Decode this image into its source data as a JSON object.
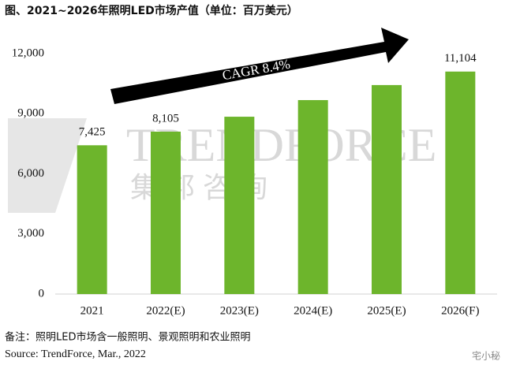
{
  "chart_data": {
    "type": "bar",
    "title": "图、2021~2026年照明LED市场产值（单位：百万美元）",
    "annotation": "CAGR 8.4%",
    "watermark": [
      "TRENDFORCE",
      "集邦咨询"
    ],
    "footnotes": [
      "备注：照明LED市场含一般照明、景观照明和农业照明",
      "Source: TrendForce, Mar., 2022"
    ],
    "corner_mark": "宅小秘",
    "categories": [
      "2021",
      "2022(E)",
      "2023(E)",
      "2024(E)",
      "2025(E)",
      "2026(F)"
    ],
    "values": [
      7425,
      8105,
      8850,
      9680,
      10430,
      11104
    ],
    "value_labels": [
      "7,425",
      "8,105",
      null,
      null,
      null,
      "11,104"
    ],
    "color": "#6db52c",
    "ylim": [
      0,
      12000
    ],
    "yticks": [
      0,
      {
        "value": 3000,
        "label": "3,000"
      },
      {
        "value": 6000,
        "label": "6,000"
      },
      {
        "value": 9000,
        "label": "9,000"
      },
      {
        "value": 12000,
        "label": "12,000"
      }
    ],
    "grid": false
  }
}
